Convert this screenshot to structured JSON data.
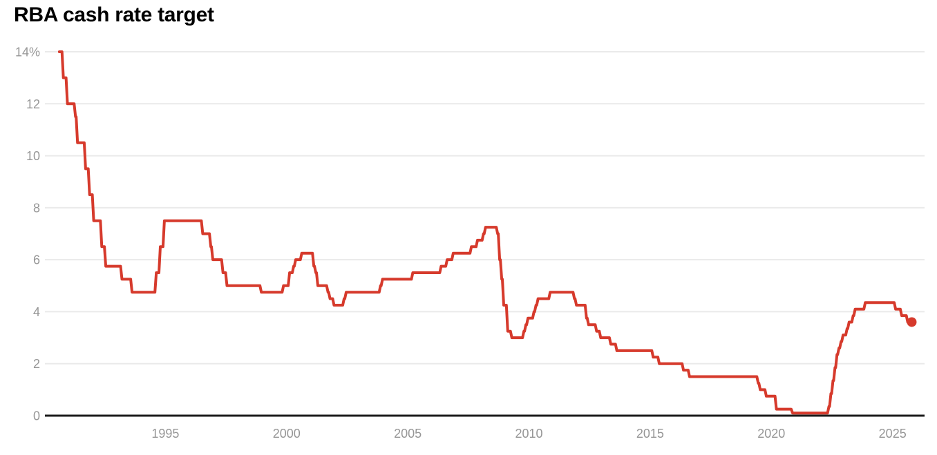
{
  "title": "RBA cash rate target",
  "colors": {
    "line": "#d63a2c",
    "grid": "#eaeaea",
    "axis": "#1b1b1b",
    "tick_label": "#969696",
    "title": "#000000",
    "background": "#ffffff"
  },
  "chart_data": {
    "type": "line",
    "title": "RBA cash rate target",
    "xlabel": "",
    "ylabel": "",
    "legend": "none",
    "grid": "horizontal",
    "unit": "%",
    "step": true,
    "end_marker": "dot-on-last-point",
    "ylim": [
      0,
      14
    ],
    "xlim": [
      1990.03,
      2026.32
    ],
    "y_ticks": [
      {
        "value": 14,
        "label": "14%"
      },
      {
        "value": 12,
        "label": "12"
      },
      {
        "value": 10,
        "label": "10"
      },
      {
        "value": 8,
        "label": "8"
      },
      {
        "value": 6,
        "label": "6"
      },
      {
        "value": 4,
        "label": "4"
      },
      {
        "value": 2,
        "label": "2"
      },
      {
        "value": 0,
        "label": "0"
      }
    ],
    "x_ticks": [
      "1995",
      "2000",
      "2005",
      "2010",
      "2015",
      "2020",
      "2025"
    ],
    "series": [
      {
        "name": "RBA cash rate target (%)",
        "points": [
          [
            "1990-08",
            14.0
          ],
          [
            "1990-10",
            13.0
          ],
          [
            "1990-12",
            12.0
          ],
          [
            "1991-04",
            11.5
          ],
          [
            "1991-05",
            10.5
          ],
          [
            "1991-09",
            9.5
          ],
          [
            "1991-11",
            8.5
          ],
          [
            "1992-01",
            7.5
          ],
          [
            "1992-05",
            6.5
          ],
          [
            "1992-07",
            5.75
          ],
          [
            "1993-03",
            5.25
          ],
          [
            "1993-08",
            4.75
          ],
          [
            "1994-08",
            5.5
          ],
          [
            "1994-10",
            6.5
          ],
          [
            "1994-12",
            7.5
          ],
          [
            "1996-07",
            7.0
          ],
          [
            "1996-11",
            6.5
          ],
          [
            "1996-12",
            6.0
          ],
          [
            "1997-05",
            5.5
          ],
          [
            "1997-07",
            5.0
          ],
          [
            "1998-12",
            4.75
          ],
          [
            "1999-11",
            5.0
          ],
          [
            "2000-02",
            5.5
          ],
          [
            "2000-04",
            5.75
          ],
          [
            "2000-05",
            6.0
          ],
          [
            "2000-08",
            6.25
          ],
          [
            "2001-02",
            5.75
          ],
          [
            "2001-03",
            5.5
          ],
          [
            "2001-04",
            5.0
          ],
          [
            "2001-09",
            4.75
          ],
          [
            "2001-10",
            4.5
          ],
          [
            "2001-12",
            4.25
          ],
          [
            "2002-05",
            4.5
          ],
          [
            "2002-06",
            4.75
          ],
          [
            "2003-11",
            5.0
          ],
          [
            "2003-12",
            5.25
          ],
          [
            "2005-03",
            5.5
          ],
          [
            "2006-05",
            5.75
          ],
          [
            "2006-08",
            6.0
          ],
          [
            "2006-11",
            6.25
          ],
          [
            "2007-08",
            6.5
          ],
          [
            "2007-11",
            6.75
          ],
          [
            "2008-02",
            7.0
          ],
          [
            "2008-03",
            7.25
          ],
          [
            "2008-09",
            7.0
          ],
          [
            "2008-10",
            6.0
          ],
          [
            "2008-11",
            5.25
          ],
          [
            "2008-12",
            4.25
          ],
          [
            "2009-02",
            3.25
          ],
          [
            "2009-04",
            3.0
          ],
          [
            "2009-10",
            3.25
          ],
          [
            "2009-11",
            3.5
          ],
          [
            "2009-12",
            3.75
          ],
          [
            "2010-03",
            4.0
          ],
          [
            "2010-04",
            4.25
          ],
          [
            "2010-05",
            4.5
          ],
          [
            "2010-11",
            4.75
          ],
          [
            "2011-11",
            4.5
          ],
          [
            "2011-12",
            4.25
          ],
          [
            "2012-05",
            3.75
          ],
          [
            "2012-06",
            3.5
          ],
          [
            "2012-10",
            3.25
          ],
          [
            "2012-12",
            3.0
          ],
          [
            "2013-05",
            2.75
          ],
          [
            "2013-08",
            2.5
          ],
          [
            "2015-02",
            2.25
          ],
          [
            "2015-05",
            2.0
          ],
          [
            "2016-05",
            1.75
          ],
          [
            "2016-08",
            1.5
          ],
          [
            "2019-06",
            1.25
          ],
          [
            "2019-07",
            1.0
          ],
          [
            "2019-10",
            0.75
          ],
          [
            "2020-03",
            0.25
          ],
          [
            "2020-11",
            0.1
          ],
          [
            "2022-05",
            0.35
          ],
          [
            "2022-06",
            0.85
          ],
          [
            "2022-07",
            1.35
          ],
          [
            "2022-08",
            1.85
          ],
          [
            "2022-09",
            2.35
          ],
          [
            "2022-10",
            2.6
          ],
          [
            "2022-11",
            2.85
          ],
          [
            "2022-12",
            3.1
          ],
          [
            "2023-02",
            3.35
          ],
          [
            "2023-03",
            3.6
          ],
          [
            "2023-05",
            3.85
          ],
          [
            "2023-06",
            4.1
          ],
          [
            "2023-11",
            4.35
          ],
          [
            "2025-02",
            4.1
          ],
          [
            "2025-05",
            3.85
          ],
          [
            "2025-08",
            3.6
          ],
          [
            "2025-10",
            3.6
          ]
        ]
      }
    ]
  }
}
